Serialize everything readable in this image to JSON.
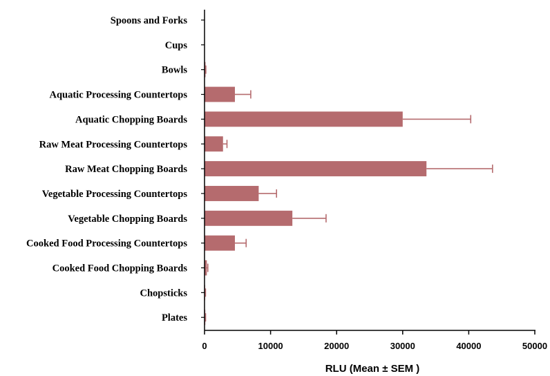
{
  "chart_data": {
    "type": "bar",
    "orientation": "horizontal",
    "title": "",
    "xlabel": "RLU (Mean ± SEM )",
    "ylabel": "",
    "xlim": [
      0,
      50000
    ],
    "xticks": [
      0,
      10000,
      20000,
      30000,
      40000,
      50000
    ],
    "xtick_labels": [
      "0",
      "10000",
      "20000",
      "30000",
      "40000",
      "50000"
    ],
    "grid": false,
    "error_bars": "SEM",
    "bar_color": "#b56b6e",
    "categories": [
      "Spoons and Forks",
      "Cups",
      "Bowls",
      "Aquatic Processing Countertops",
      "Aquatic Chopping Boards",
      "Raw Meat Processing Countertops",
      "Raw Meat Chopping Boards",
      "Vegetable Processing Countertops",
      "Vegetable Chopping Boards",
      "Cooked Food Processing Countertops",
      "Cooked Food Chopping Boards",
      "Chopsticks",
      "Plates"
    ],
    "values": [
      20,
      30,
      150,
      4600,
      30000,
      2800,
      33600,
      8200,
      13300,
      4600,
      350,
      100,
      120
    ],
    "errors": [
      0,
      0,
      50,
      2400,
      10300,
      600,
      10000,
      2700,
      5100,
      1700,
      150,
      50,
      40
    ]
  }
}
